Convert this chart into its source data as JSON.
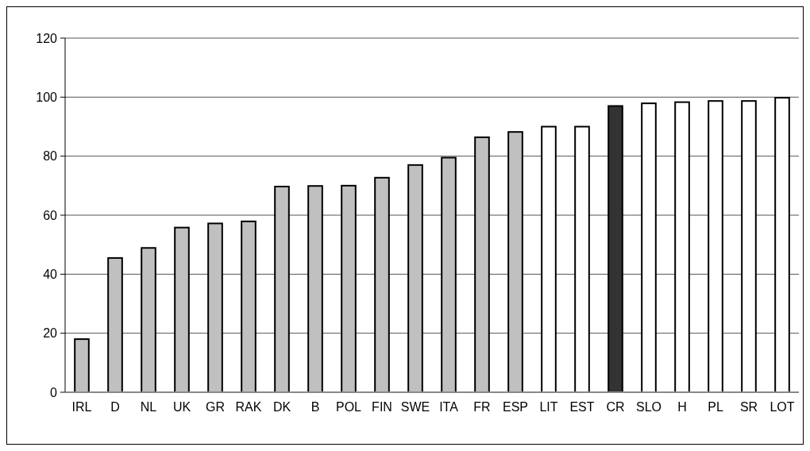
{
  "chart_data": {
    "type": "bar",
    "categories": [
      "IRL",
      "D",
      "NL",
      "UK",
      "GR",
      "RAK",
      "DK",
      "B",
      "POL",
      "FIN",
      "SWE",
      "ITA",
      "FR",
      "ESP",
      "LIT",
      "EST",
      "CR",
      "SLO",
      "H",
      "PL",
      "SR",
      "LOT"
    ],
    "values": [
      18,
      45.5,
      48.9,
      55.8,
      57.2,
      57.9,
      69.7,
      69.9,
      70,
      72.7,
      77,
      79.5,
      86.4,
      88.2,
      90,
      90,
      97,
      97.9,
      98.3,
      98.7,
      98.7,
      99.8
    ],
    "colors": [
      "#c0c0c0",
      "#c0c0c0",
      "#c0c0c0",
      "#c0c0c0",
      "#c0c0c0",
      "#c0c0c0",
      "#c0c0c0",
      "#c0c0c0",
      "#c0c0c0",
      "#c0c0c0",
      "#c0c0c0",
      "#c0c0c0",
      "#c0c0c0",
      "#c0c0c0",
      "#ffffff",
      "#ffffff",
      "#333333",
      "#ffffff",
      "#ffffff",
      "#ffffff",
      "#ffffff",
      "#ffffff"
    ],
    "ylim": [
      0,
      120
    ],
    "yticks": [
      0,
      20,
      40,
      60,
      80,
      100,
      120
    ],
    "grid": "y"
  }
}
